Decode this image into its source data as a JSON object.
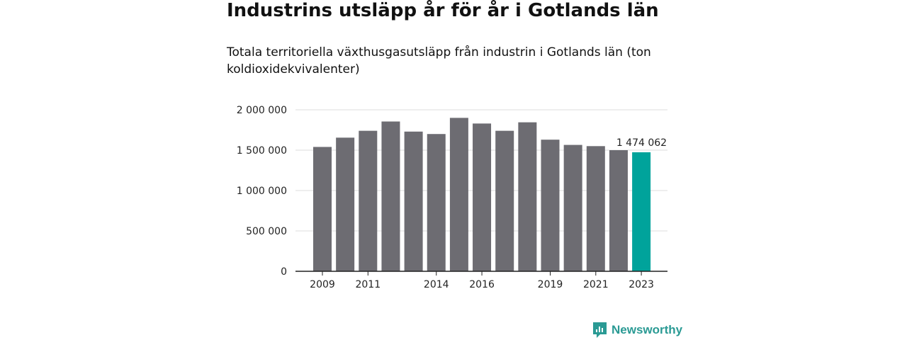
{
  "header": {
    "title": "Industrins utsläpp år för år i Gotlands län",
    "subtitle": "Totala territoriella växthusgasutsläpp från industrin i Gotlands län (ton koldioxidekvivalenter)"
  },
  "brand": {
    "name": "Newsworthy",
    "color": "#2a9a94"
  },
  "chart_data": {
    "type": "bar",
    "categories": [
      "2009",
      "2010",
      "2011",
      "2012",
      "2013",
      "2014",
      "2015",
      "2016",
      "2017",
      "2018",
      "2019",
      "2020",
      "2021",
      "2022",
      "2023"
    ],
    "values": [
      1540000,
      1655000,
      1740000,
      1855000,
      1730000,
      1700000,
      1900000,
      1830000,
      1740000,
      1845000,
      1630000,
      1565000,
      1550000,
      1500000,
      1474062
    ],
    "x_tick_labels": [
      "2009",
      "2011",
      "2014",
      "2016",
      "2019",
      "2021",
      "2023"
    ],
    "y_ticks": [
      0,
      500000,
      1000000,
      1500000,
      2000000
    ],
    "y_tick_labels": [
      "0",
      "500 000",
      "1 000 000",
      "1 500 000",
      "2 000 000"
    ],
    "ylim": [
      0,
      2000000
    ],
    "grid": true,
    "bar_color": "#6d6c72",
    "highlight_color": "#00a39b",
    "highlight_category": "2023",
    "annotation": {
      "category": "2023",
      "text": "1 474 062"
    }
  }
}
